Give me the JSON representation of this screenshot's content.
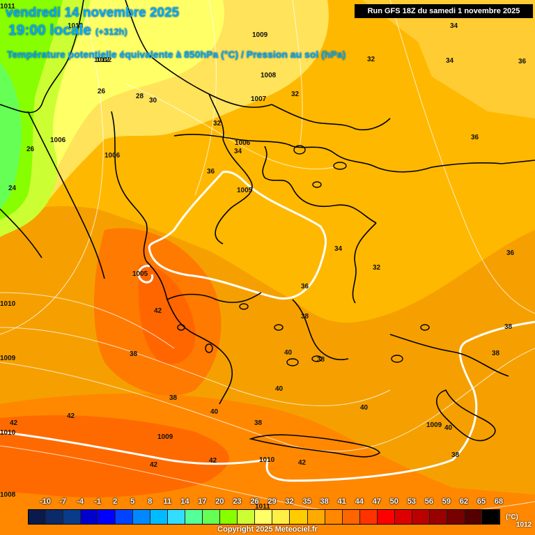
{
  "header": {
    "date_line": "vendredi 14 novembre 2025",
    "time_line": "19:00 locale",
    "lead_time": "(+312h)",
    "parameter": "Température potentielle équivalente à 850hPa (°C) / Pression au sol (hPa)",
    "run_info": "Run GFS 18Z du samedi 1 novembre 2025"
  },
  "legend": {
    "unit": "(°C)",
    "extra": "1012",
    "values": [
      "-10",
      "-7",
      "-4",
      "-1",
      "2",
      "5",
      "8",
      "11",
      "14",
      "17",
      "20",
      "23",
      "26",
      "29",
      "32",
      "35",
      "38",
      "41",
      "44",
      "47",
      "50",
      "53",
      "56",
      "59",
      "62",
      "65",
      "68"
    ],
    "colors": [
      "#0a1a4a",
      "#0b2a6a",
      "#0a3a8a",
      "#0000cc",
      "#0000ff",
      "#0044ff",
      "#0088ff",
      "#00bbff",
      "#33ddff",
      "#55ff99",
      "#66ff55",
      "#88ff00",
      "#ccff33",
      "#ffff66",
      "#ffee44",
      "#ffcc00",
      "#ffaa00",
      "#ff8800",
      "#ff6600",
      "#ff3300",
      "#ff0000",
      "#dd0000",
      "#bb0000",
      "#990000",
      "#770000",
      "#550000",
      "#000000"
    ]
  },
  "copyright": "Copyright 2025 Meteociel.fr",
  "temperature_labels": [
    "34",
    "34",
    "36",
    "26",
    "28",
    "30",
    "32",
    "32",
    "26",
    "34",
    "36",
    "24",
    "36",
    "34",
    "32",
    "36",
    "36",
    "42",
    "38",
    "38",
    "40",
    "38",
    "38",
    "40",
    "38",
    "42",
    "38",
    "40",
    "40",
    "38",
    "42",
    "42",
    "42",
    "42",
    "38",
    "40",
    "32"
  ],
  "pressure_labels": [
    "1009",
    "1008",
    "1007",
    "1006",
    "1006",
    "1006",
    "1005",
    "1005",
    "1012",
    "1013",
    "1009",
    "1009",
    "1010",
    "1010",
    "1009",
    "1011",
    "1012",
    "1011",
    "1008",
    "1010"
  ]
}
